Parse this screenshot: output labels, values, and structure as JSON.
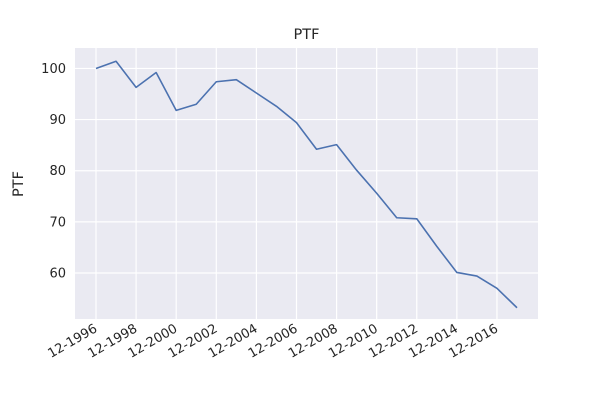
{
  "chart_data": {
    "type": "line",
    "title": "PTF",
    "xlabel": "",
    "ylabel": "PTF",
    "grid": true,
    "x": [
      "12-1996",
      "12-1997",
      "12-1998",
      "12-1999",
      "12-2000",
      "12-2001",
      "12-2002",
      "12-2003",
      "12-2004",
      "12-2005",
      "12-2006",
      "12-2007",
      "12-2008",
      "12-2009",
      "12-2010",
      "12-2011",
      "12-2012",
      "12-2013",
      "12-2014",
      "12-2015",
      "12-2016",
      "12-2017"
    ],
    "x_tick_labels": [
      "12-1996",
      "12-1998",
      "12-2000",
      "12-2002",
      "12-2004",
      "12-2006",
      "12-2008",
      "12-2010",
      "12-2012",
      "12-2014",
      "12-2016"
    ],
    "y_ticks": [
      60,
      70,
      80,
      90,
      100
    ],
    "ylim": [
      51,
      104
    ],
    "series": [
      {
        "values": [
          100.0,
          101.4,
          96.3,
          99.2,
          91.8,
          93.0,
          97.4,
          97.8,
          95.2,
          92.6,
          89.4,
          84.2,
          85.1,
          80.1,
          75.6,
          70.8,
          70.6,
          65.2,
          60.1,
          59.4,
          57.0,
          53.2
        ],
        "color": "#4c72b0"
      }
    ]
  }
}
